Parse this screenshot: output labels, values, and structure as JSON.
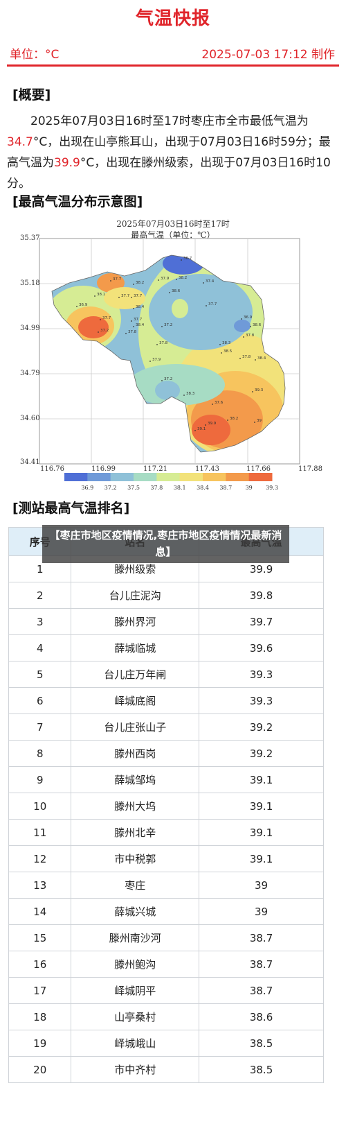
{
  "header": {
    "title": "气温快报",
    "unit": "单位：°C",
    "made": "2025-07-03 17:12 制作"
  },
  "summary": {
    "heading": "[概要]",
    "text_1": "2025年07月03日16时至17时枣庄市全市最低气温为",
    "min_value": "34.7",
    "text_2": "°C，出现在山亭熊耳山，出现于07月03日16时59分；最高气温为",
    "max_value": "39.9",
    "text_3": "°C，出现在滕州级索，出现于07月03日16时10分。"
  },
  "map": {
    "heading": "[最高气温分布示意图]",
    "title_line1": "2025年07月03日16时至17时",
    "title_line2": "最高气温（单位：℃）",
    "y_ticks": [
      "35.37",
      "35.18",
      "34.99",
      "34.79",
      "34.60",
      "34.41"
    ],
    "x_ticks": [
      "116.76",
      "116.99",
      "117.21",
      "117.43",
      "117.66",
      "117.88"
    ],
    "legend_values": [
      "36.9",
      "37.2",
      "37.5",
      "37.8",
      "38.1",
      "38.4",
      "38.7",
      "39",
      "39.3"
    ],
    "legend_colors": [
      "#4f6fd6",
      "#6f9ad8",
      "#8fc1d8",
      "#a7dcc4",
      "#d6ec94",
      "#f2e27a",
      "#f7c45e",
      "#f39a4b",
      "#ee6a3d"
    ],
    "station_labels": [
      "36.7",
      "38.2",
      "37.9",
      "38.2",
      "37.4",
      "37.7",
      "38.1",
      "37.7",
      "37.7",
      "36.9",
      "38.6",
      "37.7",
      "38.4",
      "36.9",
      "37.7",
      "38.4",
      "37.2",
      "38.6",
      "37.7",
      "37.2",
      "37.8",
      "37.8",
      "38.3",
      "37.8",
      "37.9",
      "38.5",
      "37.8",
      "38.4",
      "37.2",
      "38.3",
      "37.6",
      "39.3",
      "38.2",
      "39.9",
      "39.1",
      "39"
    ]
  },
  "ranking": {
    "heading": "[测站最高气温排名]",
    "columns": [
      "序号",
      "站名",
      "最高气温"
    ],
    "rows": [
      [
        "1",
        "滕州级索",
        "39.9"
      ],
      [
        "2",
        "台儿庄泥沟",
        "39.8"
      ],
      [
        "3",
        "滕州界河",
        "39.7"
      ],
      [
        "4",
        "薛城临城",
        "39.6"
      ],
      [
        "5",
        "台儿庄万年闸",
        "39.3"
      ],
      [
        "6",
        "峄城底阁",
        "39.3"
      ],
      [
        "7",
        "台儿庄张山子",
        "39.2"
      ],
      [
        "8",
        "滕州西岗",
        "39.2"
      ],
      [
        "9",
        "薛城邹坞",
        "39.1"
      ],
      [
        "10",
        "滕州大坞",
        "39.1"
      ],
      [
        "11",
        "滕州北辛",
        "39.1"
      ],
      [
        "12",
        "市中税郭",
        "39.1"
      ],
      [
        "13",
        "枣庄",
        "39"
      ],
      [
        "14",
        "薛城兴城",
        "39"
      ],
      [
        "15",
        "滕州南沙河",
        "38.7"
      ],
      [
        "16",
        "滕州鲍沟",
        "38.7"
      ],
      [
        "17",
        "峄城阴平",
        "38.7"
      ],
      [
        "18",
        "山亭桑村",
        "38.6"
      ],
      [
        "19",
        "峄城峨山",
        "38.5"
      ],
      [
        "20",
        "市中齐村",
        "38.5"
      ]
    ]
  },
  "overlay_text": "【枣庄市地区疫情情况,枣庄市地区疫情情况最新消息】"
}
